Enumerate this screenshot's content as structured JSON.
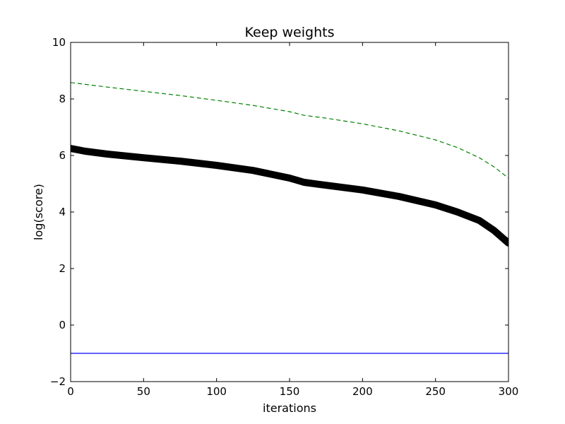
{
  "chart_data": {
    "type": "line",
    "title": "Keep weights",
    "xlabel": "iterations",
    "ylabel": "log(score)",
    "xlim": [
      0,
      300
    ],
    "ylim": [
      -2,
      10
    ],
    "xticks": [
      0,
      50,
      100,
      150,
      200,
      250,
      300
    ],
    "yticks": [
      -2,
      0,
      2,
      4,
      6,
      8,
      10
    ],
    "ytick_labels": [
      "−2",
      "0",
      "2",
      "4",
      "6",
      "8",
      "10"
    ],
    "grid": false,
    "legend": "none",
    "series": [
      {
        "style": "thick-markers",
        "color": "#000000",
        "x": [
          0,
          10,
          25,
          50,
          75,
          100,
          125,
          150,
          160,
          170,
          200,
          225,
          250,
          265,
          280,
          290,
          300
        ],
        "y": [
          6.25,
          6.15,
          6.05,
          5.92,
          5.8,
          5.65,
          5.47,
          5.2,
          5.05,
          4.98,
          4.78,
          4.55,
          4.25,
          4.0,
          3.7,
          3.35,
          2.9
        ]
      },
      {
        "style": "dashed",
        "color": "#008000",
        "x": [
          0,
          25,
          50,
          75,
          100,
          125,
          150,
          160,
          175,
          200,
          225,
          250,
          265,
          280,
          290,
          300
        ],
        "y": [
          8.58,
          8.42,
          8.27,
          8.12,
          7.95,
          7.77,
          7.55,
          7.42,
          7.32,
          7.12,
          6.87,
          6.55,
          6.28,
          5.92,
          5.6,
          5.2
        ]
      },
      {
        "style": "solid",
        "color": "#0000ff",
        "x": [
          0,
          300
        ],
        "y": [
          -1,
          -1
        ]
      }
    ]
  }
}
